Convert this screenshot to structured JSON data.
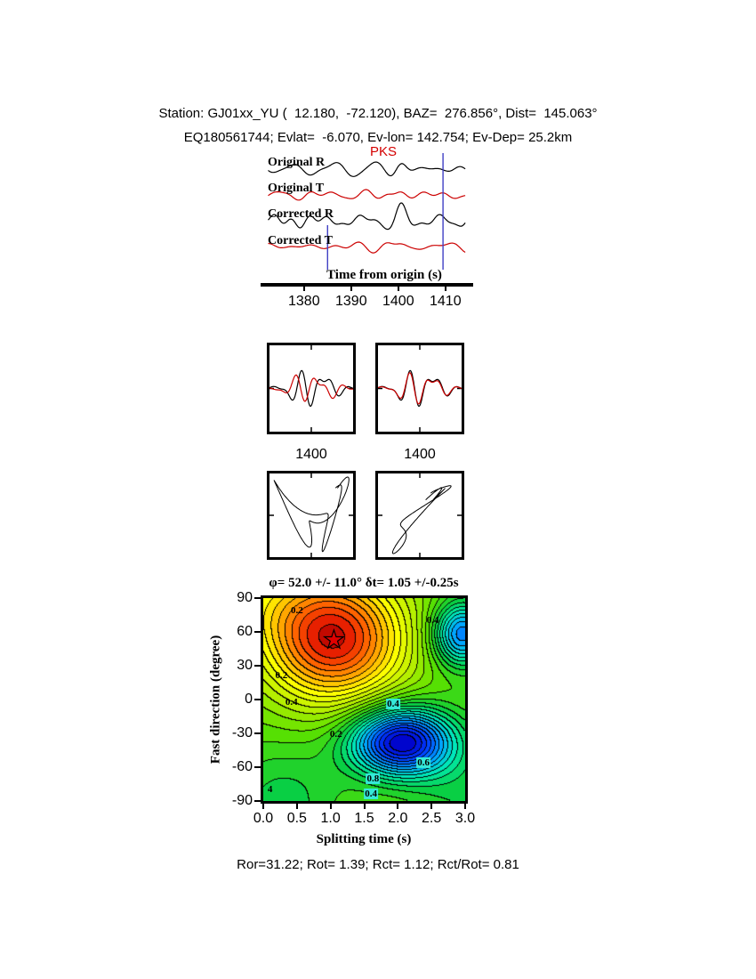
{
  "header": {
    "line1": "Station: GJ01xx_YU (  12.180,  -72.120), BAZ=  276.856°, Dist=  145.063°",
    "line2": "EQ180561744; Evlat=  -6.070, Ev-lon= 142.754; Ev-Dep= 25.2km"
  },
  "footer": {
    "stats": "Ror=31.22; Rot= 1.39; Rct= 1.12; Rct/Rot= 0.81"
  },
  "colors": {
    "trace_red": "#cc0000",
    "phase_red": "#d40000",
    "window_blue": "#4040c4",
    "star_red": "#e00000",
    "label_box": "#35e8d8"
  },
  "chart_data": [
    {
      "type": "line",
      "id": "seismogram",
      "xlabel": "Time from origin (s)",
      "xlim": [
        1372.4,
        1414.3
      ],
      "xticks": [
        1380,
        1390,
        1400,
        1410
      ],
      "series": [
        {
          "name": "Original R",
          "color": "#000000"
        },
        {
          "name": "Original T",
          "color": "#cc0000"
        },
        {
          "name": "Corrected R",
          "color": "#000000"
        },
        {
          "name": "Corrected T",
          "color": "#cc0000"
        }
      ],
      "phase_marker": {
        "label": "PKS",
        "color": "#d40000"
      },
      "window_lines": [
        1385.0,
        1409.5
      ]
    },
    {
      "type": "line",
      "id": "windowed-waveform-pair",
      "xticks": [
        1400,
        1400
      ],
      "series": [
        {
          "name": "fast component",
          "color": "#000000"
        },
        {
          "name": "slow component",
          "color": "#cc0000"
        }
      ]
    },
    {
      "type": "line",
      "id": "particle-motion-pair",
      "series": [
        {
          "name": "uncorrected particle motion",
          "color": "#000000"
        },
        {
          "name": "corrected particle motion",
          "color": "#000000"
        }
      ]
    },
    {
      "type": "heatmap",
      "id": "splitting-grid-search",
      "title": "φ= 52.0 +/- 11.0° δt= 1.05 +/-0.25s",
      "xlabel": "Splitting time (s)",
      "ylabel": "Fast direction (degree)",
      "xlim": [
        0,
        3
      ],
      "ylim": [
        -90,
        90
      ],
      "xticks": [
        "0.0",
        "0.5",
        "1.0",
        "1.5",
        "2.0",
        "2.5",
        "3.0"
      ],
      "yticks": [
        90,
        60,
        30,
        0,
        -30,
        -60,
        -90
      ],
      "best_solution": {
        "fast_direction_deg": 52.0,
        "fast_direction_err_deg": 11.0,
        "delay_time_s": 1.05,
        "delay_time_err_s": 0.25
      },
      "star": {
        "x": 1.05,
        "y": 52
      },
      "field": {
        "background": 0.05,
        "band": 0.08,
        "vmin": -1.22,
        "vmax": 1.15,
        "gaussians": [
          {
            "cx": 1.05,
            "cy": 52,
            "sx": 1.05,
            "sy": 55,
            "a": 1.05
          },
          {
            "cx": 0.0,
            "cy": 90,
            "sx": 1.5,
            "sy": 40,
            "a": 0.2
          },
          {
            "cx": 2.05,
            "cy": -38,
            "sx": 0.75,
            "sy": 30,
            "a": -1.25
          },
          {
            "cx": 2.95,
            "cy": 58,
            "sx": 0.42,
            "sy": 28,
            "a": -0.85
          },
          {
            "cx": 0.3,
            "cy": -90,
            "sx": 0.9,
            "sy": 50,
            "a": -0.25
          },
          {
            "cx": 3.0,
            "cy": -90,
            "sx": 0.8,
            "sy": 60,
            "a": -0.2
          }
        ]
      },
      "contour_labels": [
        {
          "text": "0.2",
          "x": 0.5,
          "y": 79,
          "boxed": false
        },
        {
          "text": "0.4",
          "x": 2.52,
          "y": 70,
          "boxed": false
        },
        {
          "text": "0.2",
          "x": 0.27,
          "y": 21,
          "boxed": false
        },
        {
          "text": "0.4",
          "x": 0.42,
          "y": -2,
          "boxed": false
        },
        {
          "text": "0.4",
          "x": 1.93,
          "y": -4,
          "boxed": true
        },
        {
          "text": "0.2",
          "x": 1.08,
          "y": -31,
          "boxed": false
        },
        {
          "text": "0.6",
          "x": 2.38,
          "y": -56,
          "boxed": true
        },
        {
          "text": "0.8",
          "x": 1.63,
          "y": -70,
          "boxed": true
        },
        {
          "text": "0.4",
          "x": 1.6,
          "y": -84,
          "boxed": true
        },
        {
          "text": "4",
          "x": 0.1,
          "y": -80,
          "boxed": false
        }
      ]
    }
  ]
}
